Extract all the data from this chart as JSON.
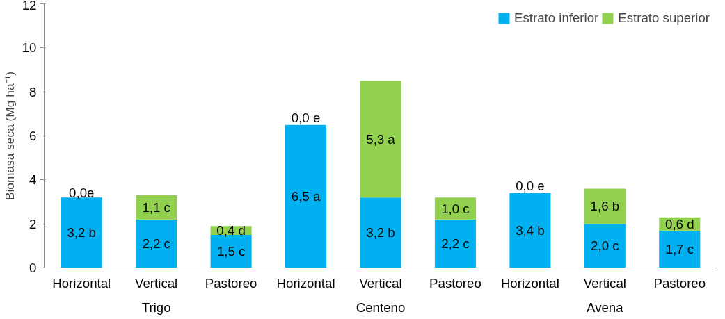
{
  "chart_data": {
    "type": "bar",
    "stacked": true,
    "ylabel": "Biomasa seca (Mg ha⁻¹)",
    "categories": [
      "Horizontal",
      "Vertical",
      "Pastoreo",
      "Horizontal",
      "Vertical",
      "Pastoreo",
      "Horizontal",
      "Vertical",
      "Pastoreo"
    ],
    "annotations": [
      "Trigo",
      "Centeno",
      "Avena"
    ],
    "series": [
      {
        "name": "Estrato inferior",
        "color": "#00b0f0",
        "values": [
          3.2,
          2.2,
          1.5,
          6.5,
          3.2,
          2.2,
          3.4,
          2.0,
          1.7
        ],
        "value_labels": [
          "3,2 b",
          "2,2 c",
          "1,5 c",
          "6,5 a",
          "3,2 b",
          "2,2 c",
          "3,4 b",
          "2,0 c",
          "1,7 c"
        ]
      },
      {
        "name": "Estrato superior",
        "color": "#92d050",
        "values": [
          0.0,
          1.1,
          0.4,
          0.0,
          5.3,
          1.0,
          0.0,
          1.6,
          0.6
        ],
        "value_labels": [
          "0,0e",
          "1,1 c",
          "0,4 d",
          "0,0 e",
          "5,3 a",
          "1,0 c",
          "0,0 e",
          "1,6 b",
          "0,6 d"
        ]
      }
    ],
    "ylim": [
      0,
      12
    ],
    "yticks": [
      0,
      2,
      4,
      6,
      8,
      10,
      12
    ],
    "grid": false,
    "legend": "top right"
  }
}
